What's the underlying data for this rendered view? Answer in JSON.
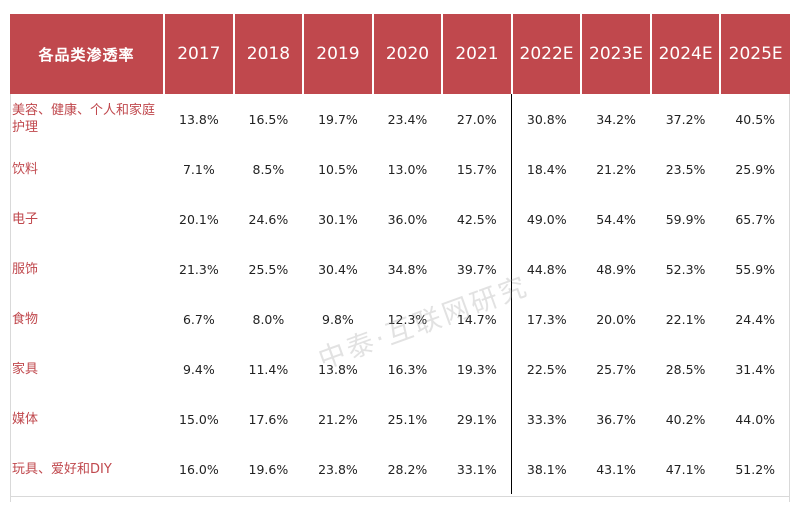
{
  "table": {
    "header_label": "各品类渗透率",
    "years": [
      "2017",
      "2018",
      "2019",
      "2020",
      "2021",
      "2022E",
      "2023E",
      "2024E",
      "2025E"
    ],
    "rows": [
      {
        "category": "美容、健康、个人和家庭护理",
        "values": [
          "13.8%",
          "16.5%",
          "19.7%",
          "23.4%",
          "27.0%",
          "30.8%",
          "34.2%",
          "37.2%",
          "40.5%"
        ]
      },
      {
        "category": "饮料",
        "values": [
          "7.1%",
          "8.5%",
          "10.5%",
          "13.0%",
          "15.7%",
          "18.4%",
          "21.2%",
          "23.5%",
          "25.9%"
        ]
      },
      {
        "category": "电子",
        "values": [
          "20.1%",
          "24.6%",
          "30.1%",
          "36.0%",
          "42.5%",
          "49.0%",
          "54.4%",
          "59.9%",
          "65.7%"
        ]
      },
      {
        "category": "服饰",
        "values": [
          "21.3%",
          "25.5%",
          "30.4%",
          "34.8%",
          "39.7%",
          "44.8%",
          "48.9%",
          "52.3%",
          "55.9%"
        ]
      },
      {
        "category": "食物",
        "values": [
          "6.7%",
          "8.0%",
          "9.8%",
          "12.3%",
          "14.7%",
          "17.3%",
          "20.0%",
          "22.1%",
          "24.4%"
        ]
      },
      {
        "category": "家具",
        "values": [
          "9.4%",
          "11.4%",
          "13.8%",
          "16.3%",
          "19.3%",
          "22.5%",
          "25.7%",
          "28.5%",
          "31.4%"
        ]
      },
      {
        "category": "媒体",
        "values": [
          "15.0%",
          "17.6%",
          "21.2%",
          "25.1%",
          "29.1%",
          "33.3%",
          "36.7%",
          "40.2%",
          "44.0%"
        ]
      },
      {
        "category": "玩具、爱好和DIY",
        "values": [
          "16.0%",
          "19.6%",
          "23.8%",
          "28.2%",
          "33.1%",
          "38.1%",
          "43.1%",
          "47.1%",
          "51.2%"
        ]
      }
    ]
  },
  "watermark": "中泰·互联网研究",
  "colors": {
    "header_bg": "#c0484d",
    "category_text": "#c0484d",
    "cell_text": "#222222"
  }
}
